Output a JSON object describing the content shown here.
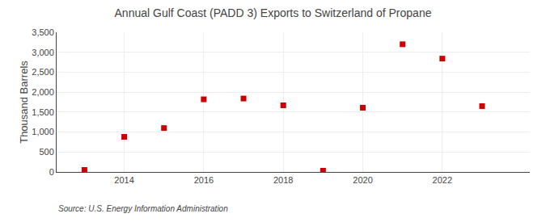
{
  "chart_data": {
    "type": "scatter",
    "title": "Annual Gulf Coast (PADD 3) Exports to Switzerland of Propane",
    "y_label": "Thousand Barrels",
    "annotations": [
      "Source: U.S. Energy Information Administration"
    ],
    "x": [
      2013,
      2014,
      2015,
      2016,
      2017,
      2018,
      2019,
      2020,
      2021,
      2022,
      2023
    ],
    "values": [
      50,
      880,
      1100,
      1820,
      1840,
      1670,
      30,
      1610,
      3200,
      2840,
      1650
    ],
    "color": "#cc0000",
    "marker": "square",
    "xlim": [
      2012.3,
      2024.2
    ],
    "xticks": [
      2014,
      2016,
      2018,
      2020,
      2022
    ],
    "ylim": [
      0,
      3500
    ],
    "yticks": [
      0,
      500,
      {
        "value": 1000,
        "label": "1,000"
      },
      {
        "value": 1500,
        "label": "1,500"
      },
      {
        "value": 2000,
        "label": "2,000"
      },
      {
        "value": 2500,
        "label": "2,500"
      },
      {
        "value": 3000,
        "label": "3,000"
      },
      {
        "value": 3500,
        "label": "3,500"
      }
    ],
    "grid": true
  }
}
